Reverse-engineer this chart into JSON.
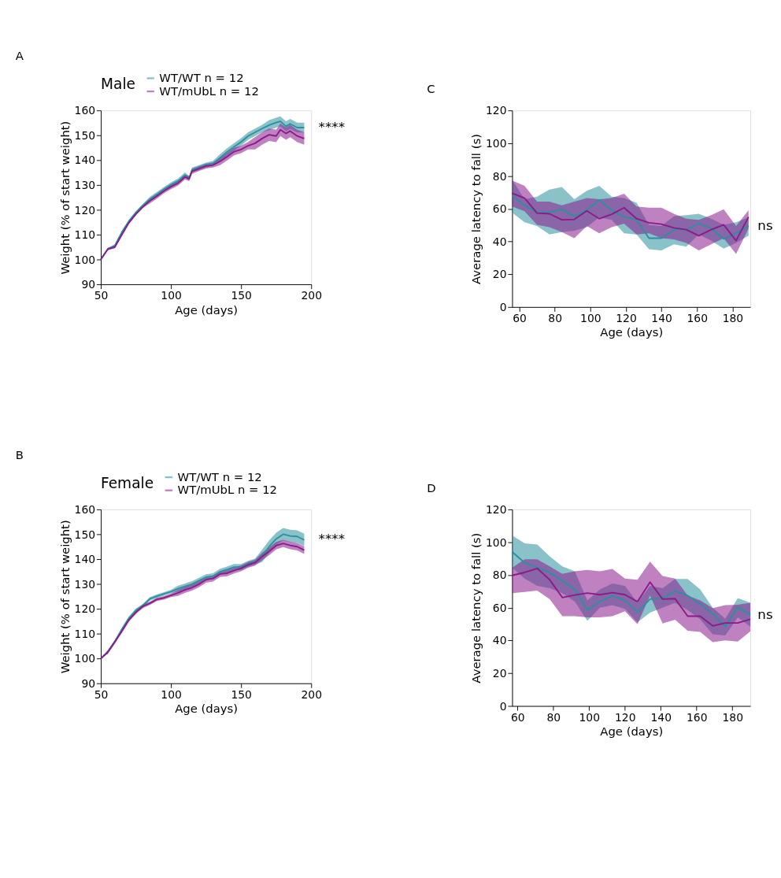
{
  "chart_data": [
    {
      "type": "line",
      "title": "A",
      "xlabel": "Age (days)",
      "ylabel": "Weight (% of start weight)",
      "xlim": [
        50,
        200
      ],
      "xticks": [
        50,
        100,
        150,
        200
      ],
      "ylim": [
        90,
        160
      ],
      "yticks": [
        90,
        100,
        110,
        120,
        130,
        140,
        150,
        160
      ],
      "legend": "top",
      "legend_title": "Male",
      "annotations": [
        "****"
      ],
      "series": [
        {
          "name": "WT/WT n = 12",
          "color": "#2a8f9f",
          "x": [
            50,
            55,
            60,
            65,
            70,
            75,
            80,
            85,
            90,
            95,
            100,
            105,
            110,
            113,
            115,
            120,
            125,
            130,
            135,
            140,
            145,
            150,
            155,
            160,
            165,
            170,
            175,
            178,
            182,
            185,
            190,
            195
          ],
          "values": [
            100,
            104.2,
            105.6,
            111,
            115.4,
            118.9,
            121.8,
            124.3,
            126.2,
            128.2,
            130.1,
            131.6,
            134,
            132.6,
            136,
            137,
            138,
            138.7,
            140.9,
            143.3,
            145.3,
            147.3,
            149.7,
            151.2,
            152.7,
            154.1,
            155.1,
            155.6,
            153.6,
            154.6,
            153.1,
            153.1
          ],
          "lower": [
            100,
            103.7,
            105.1,
            110.5,
            114.9,
            118.4,
            121.3,
            123.3,
            125.2,
            127.2,
            129.1,
            130.6,
            133,
            131.6,
            135,
            136,
            137,
            137.7,
            139.4,
            141.8,
            143.8,
            145.8,
            148.2,
            149.7,
            151.2,
            152.1,
            153.1,
            153.6,
            151.6,
            152.6,
            151.1,
            151.1
          ],
          "upper": [
            100,
            104.7,
            106.1,
            111.5,
            115.9,
            119.4,
            122.3,
            125.3,
            127.2,
            129.2,
            131.1,
            132.6,
            135,
            133.6,
            137,
            138,
            139,
            139.7,
            142.4,
            144.8,
            146.8,
            148.8,
            151.2,
            152.7,
            154.2,
            156.1,
            157.1,
            157.6,
            155.6,
            156.6,
            155.1,
            155.1
          ]
        },
        {
          "name": "WT/mUbL n = 12",
          "color": "#8b1a8b",
          "x": [
            50,
            55,
            60,
            65,
            70,
            75,
            80,
            85,
            90,
            95,
            100,
            105,
            110,
            113,
            115,
            120,
            125,
            130,
            135,
            140,
            145,
            150,
            155,
            160,
            165,
            170,
            175,
            178,
            182,
            185,
            190,
            195
          ],
          "values": [
            100,
            104.2,
            105,
            110,
            114.8,
            118.3,
            121.2,
            123.6,
            125.5,
            127.6,
            129.3,
            130.7,
            133.2,
            132.6,
            135.5,
            136.6,
            137.6,
            138,
            139.5,
            141.4,
            143.4,
            144.3,
            145.8,
            146.8,
            148.7,
            150.2,
            149.7,
            152.2,
            150.7,
            151.7,
            149.7,
            148.7
          ],
          "lower": [
            100,
            103.7,
            104.5,
            109.5,
            114.3,
            117.8,
            120.7,
            122.6,
            124.5,
            126.6,
            128.3,
            129.7,
            132.2,
            131.6,
            134.5,
            135.6,
            136.6,
            137,
            138,
            139.9,
            141.9,
            142.8,
            144.3,
            144.3,
            146.2,
            147.7,
            147.2,
            149.7,
            148.2,
            149.2,
            147.2,
            146.2
          ],
          "upper": [
            100,
            104.7,
            105.5,
            110.5,
            115.3,
            118.8,
            121.7,
            124.6,
            126.5,
            128.6,
            130.3,
            131.7,
            134.2,
            133.6,
            136.5,
            137.6,
            138.6,
            139,
            141,
            142.9,
            144.9,
            145.8,
            147.3,
            149.3,
            151.2,
            152.7,
            152.2,
            154.7,
            153.2,
            154.2,
            152.2,
            151.2
          ]
        }
      ]
    },
    {
      "type": "line",
      "title": "C",
      "xlabel": "Age (days)",
      "ylabel": "Average latency to fall (s)",
      "xlim": [
        56,
        190
      ],
      "xticks": [
        60,
        80,
        100,
        120,
        140,
        160,
        180
      ],
      "ylim": [
        0,
        120
      ],
      "yticks": [
        0,
        20,
        40,
        60,
        80,
        100,
        120
      ],
      "annotations": [
        "ns"
      ],
      "series": [
        {
          "color": "#2a8f9f",
          "x": [
            56,
            63,
            70,
            77,
            84,
            91,
            98,
            105,
            112,
            119,
            126,
            133,
            140,
            147,
            154,
            161,
            168,
            175,
            182,
            189
          ],
          "values": [
            68,
            62.1,
            57.6,
            57.9,
            59.6,
            55.4,
            59.1,
            65.3,
            59.1,
            55,
            53.2,
            42,
            42,
            47.2,
            47.2,
            50.9,
            48,
            41.6,
            45,
            49.5
          ],
          "lower": [
            57.6,
            51.7,
            49.5,
            44.3,
            45.7,
            46.5,
            48.7,
            54.7,
            53.2,
            45,
            44.3,
            35.3,
            34.6,
            38.3,
            36.8,
            44.3,
            40.5,
            35.6,
            39.1,
            43.5
          ],
          "upper": [
            77.7,
            65.8,
            67.3,
            71.7,
            73.2,
            65.8,
            71,
            74,
            67.3,
            66.5,
            63.6,
            50.2,
            49.5,
            55.4,
            56.1,
            56.9,
            53.9,
            50.2,
            51.7,
            54.7
          ]
        },
        {
          "color": "#8b1a8b",
          "x": [
            56,
            63,
            70,
            77,
            84,
            91,
            98,
            105,
            112,
            119,
            126,
            133,
            140,
            147,
            154,
            161,
            168,
            175,
            182,
            189
          ],
          "values": [
            69.5,
            66.5,
            57.3,
            56.9,
            53.2,
            53.5,
            58.7,
            53.9,
            56.6,
            60.6,
            53.9,
            51.4,
            50.6,
            48.3,
            47.2,
            43.5,
            47.2,
            50.2,
            40.5,
            55
          ],
          "lower": [
            61.3,
            58.4,
            50.2,
            48.7,
            45.7,
            42,
            49.5,
            45,
            48.7,
            50.9,
            44.3,
            45,
            42,
            41.3,
            39.1,
            34.6,
            38.3,
            42,
            32.4,
            48
          ],
          "upper": [
            77.2,
            74,
            64.3,
            64.3,
            62.1,
            64.3,
            66.5,
            65.8,
            66.5,
            69.1,
            61.3,
            60.6,
            60.6,
            56.9,
            53.9,
            53.2,
            56.1,
            59.6,
            49.5,
            59.1
          ]
        }
      ]
    },
    {
      "type": "line",
      "title": "B",
      "xlabel": "Age (days)",
      "ylabel": "Weight (% of start weight)",
      "xlim": [
        50,
        200
      ],
      "xticks": [
        50,
        100,
        150,
        200
      ],
      "ylim": [
        90,
        160
      ],
      "yticks": [
        90,
        100,
        110,
        120,
        130,
        140,
        150,
        160
      ],
      "legend": "top",
      "legend_title": "Female",
      "annotations": [
        "****"
      ],
      "series": [
        {
          "name": "WT/WT n = 12",
          "color": "#2a8f9f",
          "x": [
            50,
            55,
            60,
            65,
            70,
            75,
            80,
            85,
            90,
            95,
            100,
            105,
            110,
            115,
            120,
            125,
            130,
            135,
            140,
            145,
            150,
            155,
            160,
            165,
            170,
            175,
            180,
            185,
            190,
            195
          ],
          "values": [
            100,
            102.6,
            106.7,
            111.7,
            116.2,
            119.4,
            121.3,
            124,
            125.1,
            126,
            126.9,
            128.1,
            129,
            129.9,
            131.3,
            132.7,
            133.1,
            134.9,
            135.8,
            136.8,
            136.8,
            138.1,
            139,
            141.3,
            145,
            148.1,
            150,
            149.3,
            149.1,
            147.7
          ],
          "lower": [
            100,
            101.9,
            106,
            111,
            115.5,
            118.7,
            120.6,
            123.3,
            124.4,
            125.3,
            126.2,
            126.9,
            127.8,
            128.7,
            130.1,
            131.5,
            131.9,
            133.7,
            134.6,
            135.6,
            135.6,
            136.9,
            137.8,
            138.8,
            142.5,
            145.6,
            147.5,
            146.8,
            146.6,
            145.2
          ],
          "upper": [
            100,
            103.3,
            107.4,
            112.4,
            116.9,
            120.1,
            122,
            124.7,
            125.8,
            126.7,
            127.6,
            129.3,
            130.2,
            131.1,
            132.5,
            133.9,
            134.3,
            136.1,
            137,
            138,
            138,
            139.3,
            140.2,
            143.8,
            147.5,
            150.6,
            152.5,
            151.8,
            151.6,
            150.2
          ]
        },
        {
          "name": "WT/mUbL n = 12",
          "color": "#8b1a8b",
          "x": [
            50,
            55,
            60,
            65,
            70,
            75,
            80,
            85,
            90,
            95,
            100,
            105,
            110,
            115,
            120,
            125,
            130,
            135,
            140,
            145,
            150,
            155,
            160,
            165,
            170,
            175,
            180,
            185,
            190,
            195
          ],
          "values": [
            100,
            102.6,
            106.7,
            111,
            115.5,
            118.6,
            121,
            122.2,
            123.8,
            124.4,
            125.4,
            126.4,
            127.6,
            128.5,
            129.9,
            131.7,
            132.2,
            134,
            134.3,
            135.4,
            136.3,
            137.7,
            138.6,
            141,
            143.1,
            145.4,
            146.3,
            145.5,
            145,
            143.6
          ],
          "lower": [
            100,
            101.9,
            106,
            110.3,
            114.8,
            117.9,
            120.3,
            121.5,
            123.1,
            123.7,
            124.7,
            125.2,
            126.4,
            127.3,
            128.7,
            130.5,
            131,
            132.8,
            133.1,
            134.2,
            135.1,
            136.5,
            137.4,
            139.5,
            141.6,
            143.9,
            144.8,
            144,
            143.5,
            142.1
          ],
          "upper": [
            100,
            103.3,
            107.4,
            111.7,
            116.2,
            119.3,
            121.7,
            122.9,
            124.5,
            125.1,
            126.1,
            127.6,
            128.8,
            129.7,
            131.1,
            132.9,
            133.4,
            135.2,
            135.5,
            136.6,
            137.5,
            138.9,
            139.8,
            142.5,
            144.6,
            146.9,
            147.8,
            147,
            146.5,
            145.1
          ]
        }
      ]
    },
    {
      "type": "line",
      "title": "D",
      "xlabel": "Age (days)",
      "ylabel": "Average latency to fall (s)",
      "xlim": [
        57,
        190
      ],
      "xticks": [
        60,
        80,
        100,
        120,
        140,
        160,
        180
      ],
      "ylim": [
        0,
        120
      ],
      "yticks": [
        0,
        20,
        40,
        60,
        80,
        100,
        120
      ],
      "annotations": [
        "ns"
      ],
      "series": [
        {
          "color": "#2a8f9f",
          "x": [
            57,
            64,
            71,
            78,
            85,
            92,
            99,
            106,
            113,
            120,
            127,
            134,
            141,
            148,
            155,
            162,
            169,
            176,
            183,
            190
          ],
          "values": [
            94.1,
            87.4,
            84.4,
            81.5,
            76.3,
            71.1,
            58.5,
            63.7,
            67.4,
            64.4,
            57.3,
            65.2,
            65.9,
            70.1,
            67.4,
            62.2,
            56.3,
            48.4,
            60.3,
            55.6
          ],
          "lower": [
            84.4,
            77.8,
            73.3,
            71.9,
            68.9,
            63.7,
            51.9,
            60,
            61.5,
            59.3,
            51.1,
            57,
            60,
            63,
            58.5,
            52.9,
            43.7,
            43,
            54.1,
            48.4
          ],
          "upper": [
            104.1,
            99.3,
            98.5,
            91.4,
            85.2,
            82.2,
            64.4,
            71.1,
            74.8,
            73.3,
            63,
            73.3,
            71.9,
            77.5,
            77.5,
            71.1,
            60,
            53.3,
            65.9,
            63
          ]
        },
        {
          "color": "#8b1a8b",
          "x": [
            57,
            64,
            71,
            78,
            85,
            92,
            99,
            106,
            113,
            120,
            127,
            134,
            141,
            148,
            155,
            162,
            169,
            176,
            183,
            190
          ],
          "values": [
            79.7,
            81.5,
            84,
            77,
            66.2,
            67.7,
            68.9,
            67.9,
            69.2,
            67.9,
            63.7,
            75.6,
            65.2,
            65.5,
            54.8,
            54.8,
            48.9,
            50.7,
            50.7,
            52.9
          ],
          "lower": [
            68.9,
            69.6,
            70.4,
            65.2,
            54.8,
            54.8,
            54.1,
            54.1,
            54.8,
            57.8,
            49.9,
            67.4,
            50.4,
            52.6,
            45.9,
            45.2,
            39,
            40,
            39.3,
            45.5
          ],
          "upper": [
            84.4,
            89.6,
            89.6,
            85.2,
            80.7,
            82.2,
            83,
            82.2,
            83.7,
            77.8,
            77,
            88.1,
            79.3,
            77.8,
            67.4,
            64.4,
            59.7,
            61.5,
            61.8,
            63
          ]
        }
      ]
    }
  ]
}
